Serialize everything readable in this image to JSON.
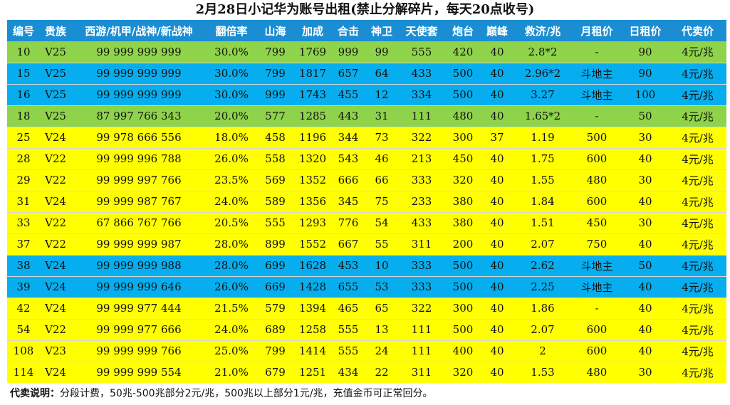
{
  "title": "2月28日小记华为账号出租(禁止分解碎片，每天20点收号)",
  "columns": [
    "编号",
    "贵族",
    "西游/机甲/战神/新战神",
    "翻倍率",
    "山海",
    "加成",
    "合击",
    "神卫",
    "天使套",
    "炮台",
    "巅峰",
    "救济/兆",
    "月租价",
    "日租价",
    "代卖价"
  ],
  "rows": [
    {
      "color": "green",
      "cells": [
        "10",
        "V25",
        "99 999 999 999",
        "30.0%",
        "799",
        "1769",
        "999",
        "99",
        "555",
        "420",
        "40",
        "2.8*2",
        "-",
        "90",
        "4元/兆"
      ]
    },
    {
      "color": "blue",
      "cells": [
        "15",
        "V25",
        "99 999 999 999",
        "30.0%",
        "799",
        "1817",
        "657",
        "64",
        "433",
        "500",
        "40",
        "2.96*2",
        "斗地主",
        "90",
        "4元/兆"
      ]
    },
    {
      "color": "blue",
      "cells": [
        "16",
        "V25",
        "99 999 999 999",
        "30.0%",
        "999",
        "1743",
        "455",
        "12",
        "334",
        "500",
        "40",
        "3.27",
        "斗地主",
        "100",
        "4元/兆"
      ]
    },
    {
      "color": "green",
      "cells": [
        "18",
        "V25",
        "87 997 766 343",
        "20.0%",
        "577",
        "1285",
        "443",
        "31",
        "111",
        "480",
        "40",
        "1.65*2",
        "-",
        "50",
        "4元/兆"
      ]
    },
    {
      "color": "yellow",
      "cells": [
        "25",
        "V24",
        "99 978 666 556",
        "18.0%",
        "458",
        "1196",
        "344",
        "73",
        "322",
        "300",
        "37",
        "1.19",
        "500",
        "30",
        "4元/兆"
      ]
    },
    {
      "color": "yellow",
      "cells": [
        "28",
        "V22",
        "99 999 996 788",
        "26.0%",
        "558",
        "1320",
        "543",
        "46",
        "213",
        "450",
        "40",
        "1.75",
        "600",
        "40",
        "4元/兆"
      ]
    },
    {
      "color": "yellow",
      "cells": [
        "29",
        "V22",
        "99 999 997 766",
        "23.5%",
        "569",
        "1352",
        "666",
        "66",
        "333",
        "320",
        "40",
        "1.55",
        "480",
        "30",
        "4元/兆"
      ]
    },
    {
      "color": "yellow",
      "cells": [
        "31",
        "V24",
        "99 999 987 767",
        "24.0%",
        "589",
        "1356",
        "345",
        "75",
        "233",
        "380",
        "40",
        "1.84",
        "600",
        "40",
        "4元/兆"
      ]
    },
    {
      "color": "yellow",
      "cells": [
        "33",
        "V22",
        "67 866 767 766",
        "20.5%",
        "555",
        "1293",
        "776",
        "54",
        "433",
        "380",
        "40",
        "1.51",
        "450",
        "30",
        "4元/兆"
      ]
    },
    {
      "color": "yellow",
      "cells": [
        "37",
        "V22",
        "99 999 999 987",
        "28.0%",
        "899",
        "1552",
        "667",
        "55",
        "311",
        "200",
        "40",
        "2.07",
        "750",
        "40",
        "4元/兆"
      ]
    },
    {
      "color": "blue",
      "cells": [
        "38",
        "V24",
        "99 999 999 988",
        "28.0%",
        "699",
        "1628",
        "453",
        "10",
        "333",
        "500",
        "40",
        "2.62",
        "斗地主",
        "50",
        "4元/兆"
      ]
    },
    {
      "color": "blue",
      "cells": [
        "39",
        "V24",
        "99 999 999 646",
        "26.0%",
        "669",
        "1428",
        "655",
        "53",
        "333",
        "500",
        "40",
        "2.25",
        "斗地主",
        "40",
        "4元/兆"
      ]
    },
    {
      "color": "yellow",
      "cells": [
        "42",
        "V24",
        "99 999 977 444",
        "21.5%",
        "579",
        "1394",
        "465",
        "65",
        "322",
        "300",
        "40",
        "1.86",
        "-",
        "40",
        "4元/兆"
      ]
    },
    {
      "color": "yellow",
      "cells": [
        "54",
        "V22",
        "99 999 977 666",
        "24.0%",
        "689",
        "1258",
        "555",
        "13",
        "111",
        "500",
        "40",
        "2.07",
        "600",
        "40",
        "4元/兆"
      ]
    },
    {
      "color": "yellow",
      "cells": [
        "108",
        "V23",
        "99 999 999 766",
        "25.0%",
        "799",
        "1414",
        "555",
        "24",
        "111",
        "400",
        "40",
        "2",
        "600",
        "40",
        "4元/兆"
      ]
    },
    {
      "color": "yellow",
      "cells": [
        "114",
        "V24",
        "99 999 999 554",
        "21.0%",
        "679",
        "1251",
        "434",
        "22",
        "311",
        "320",
        "40",
        "1.53",
        "480",
        "30",
        "4元/兆"
      ]
    }
  ],
  "note": {
    "label": "代卖说明：",
    "text": "分段计费，50兆-500兆部分2元/兆，500兆以上部分1元/兆，充值金币可正常回分。"
  }
}
